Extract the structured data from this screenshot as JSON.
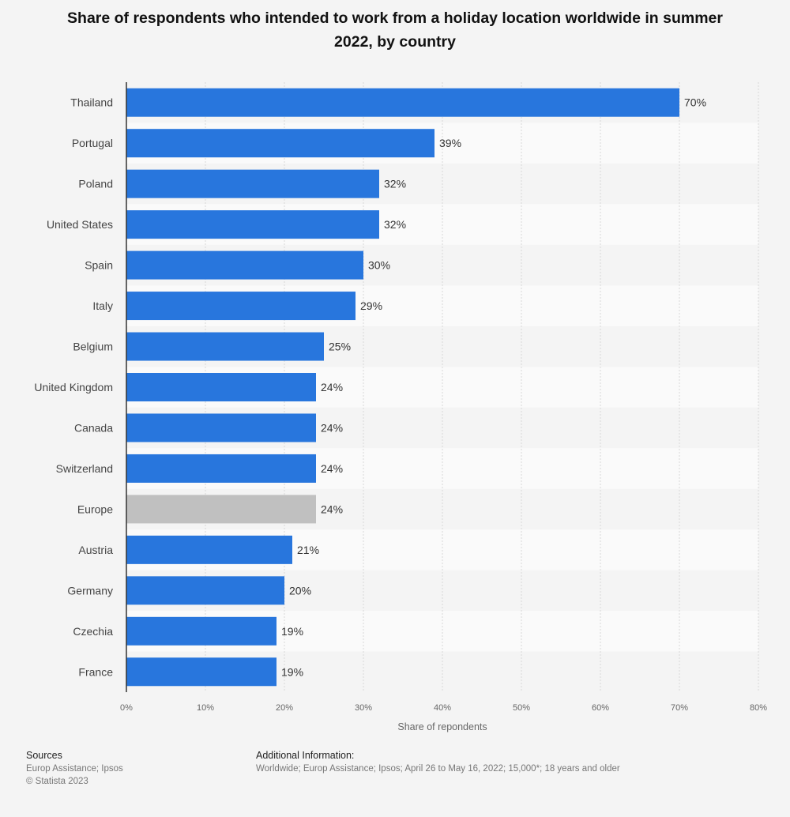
{
  "chart_data": {
    "type": "bar",
    "orientation": "horizontal",
    "title": "Share of respondents who intended to work from a holiday location worldwide in summer 2022, by country",
    "xlabel": "Share of repondents",
    "ylabel": "",
    "xlim": [
      0,
      80
    ],
    "xticks": [
      "0%",
      "10%",
      "20%",
      "30%",
      "40%",
      "50%",
      "60%",
      "70%",
      "80%"
    ],
    "grid": true,
    "categories": [
      "Thailand",
      "Portugal",
      "Poland",
      "United States",
      "Spain",
      "Italy",
      "Belgium",
      "United Kingdom",
      "Canada",
      "Switzerland",
      "Europe",
      "Austria",
      "Germany",
      "Czechia",
      "France"
    ],
    "values": [
      70,
      39,
      32,
      32,
      30,
      29,
      25,
      24,
      24,
      24,
      24,
      21,
      20,
      19,
      19
    ],
    "data_labels": [
      "70%",
      "39%",
      "32%",
      "32%",
      "30%",
      "29%",
      "25%",
      "24%",
      "24%",
      "24%",
      "24%",
      "21%",
      "20%",
      "19%",
      "19%"
    ],
    "highlighted_category": "Europe",
    "colors": {
      "bar": "#2876dd",
      "highlight": "#c0c0c0"
    }
  },
  "footer": {
    "sources_title": "Sources",
    "sources": "Europ Assistance; Ipsos",
    "copyright": "© Statista 2023",
    "info_title": "Additional Information:",
    "info": "Worldwide; Europ Assistance; Ipsos; April 26 to May 16, 2022; 15,000*; 18 years and older"
  }
}
